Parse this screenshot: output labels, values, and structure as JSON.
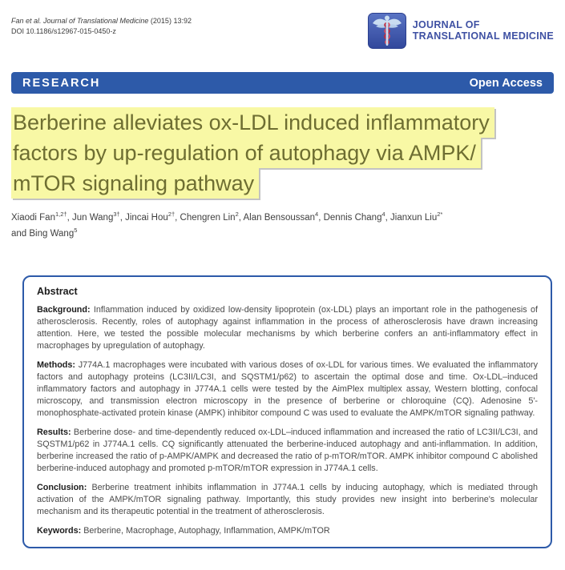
{
  "colors": {
    "banner_blue": "#2d5aa9",
    "logo_text_blue": "#3f51a3",
    "title_text_olive": "#6e6e32",
    "highlight_yellow": "#f8f8a5",
    "snake_red": "#c22a3c",
    "caduceus_light_blue": "#c9ddf1"
  },
  "header": {
    "citation_italic": "Fan et al. Journal of Translational Medicine",
    "citation_rest": " (2015) 13:92",
    "doi": "DOI 10.1186/s12967-015-0450-z",
    "logo": {
      "icon": "caduceus-icon",
      "name_line1": "JOURNAL OF",
      "name_line2": "TRANSLATIONAL MEDICINE"
    }
  },
  "banner": {
    "article_type": "RESEARCH",
    "access": "Open Access"
  },
  "article": {
    "title_lines": [
      "Berberine alleviates ox-LDL induced inflammatory",
      "factors by up-regulation of autophagy via AMPK/",
      "mTOR signaling pathway"
    ],
    "authors": [
      {
        "name": "Xiaodi Fan",
        "sup": "1,2†"
      },
      {
        "name": "Jun Wang",
        "sup": "3†"
      },
      {
        "name": "Jincai Hou",
        "sup": "2†"
      },
      {
        "name": "Chengren Lin",
        "sup": "2"
      },
      {
        "name": "Alan Bensoussan",
        "sup": "4"
      },
      {
        "name": "Dennis Chang",
        "sup": "4"
      },
      {
        "name": "Jianxun Liu",
        "sup": "2*"
      },
      {
        "name": "Bing Wang",
        "sup": "5"
      }
    ],
    "author_separator": ", ",
    "author_conjunction": "and "
  },
  "abstract": {
    "heading": "Abstract",
    "sections": [
      {
        "label": "Background:",
        "text": " Inflammation induced by oxidized low-density lipoprotein (ox-LDL) plays an important role in the pathogenesis of atherosclerosis. Recently, roles of autophagy against inflammation in the process of atherosclerosis have drawn increasing attention. Here, we tested the possible molecular mechanisms by which berberine confers an anti-inflammatory effect in macrophages by upregulation of autophagy."
      },
      {
        "label": "Methods:",
        "text": " J774A.1 macrophages were incubated with various doses of ox-LDL for various times. We evaluated the inflammatory factors and autophagy proteins (LC3II/LC3I, and SQSTM1/p62) to ascertain the optimal dose and time. Ox-LDL–induced inflammatory factors and autophagy in J774A.1 cells were tested by the AimPlex multiplex assay, Western blotting, confocal microscopy, and transmission electron microscopy in the presence of berberine or chloroquine (CQ). Adenosine 5'-monophosphate-activated protein kinase (AMPK) inhibitor compound C was used to evaluate the AMPK/mTOR signaling pathway."
      },
      {
        "label": "Results:",
        "text": " Berberine dose- and time-dependently reduced ox-LDL–induced inflammation and increased the ratio of LC3II/LC3I, and SQSTM1/p62 in J774A.1 cells. CQ significantly attenuated the berberine-induced autophagy and anti-inflammation. In addition, berberine increased the ratio of p-AMPK/AMPK and decreased the ratio of p-mTOR/mTOR. AMPK inhibitor compound C abolished berberine-induced autophagy and promoted p-mTOR/mTOR expression in J774A.1 cells."
      },
      {
        "label": "Conclusion:",
        "text": " Berberine treatment inhibits inflammation in J774A.1 cells by inducing autophagy, which is mediated through activation of the AMPK/mTOR signaling pathway. Importantly, this study provides new insight into berberine's molecular mechanism and its therapeutic potential in the treatment of atherosclerosis."
      },
      {
        "label": "Keywords:",
        "text": " Berberine, Macrophage, Autophagy, Inflammation, AMPK/mTOR"
      }
    ]
  }
}
